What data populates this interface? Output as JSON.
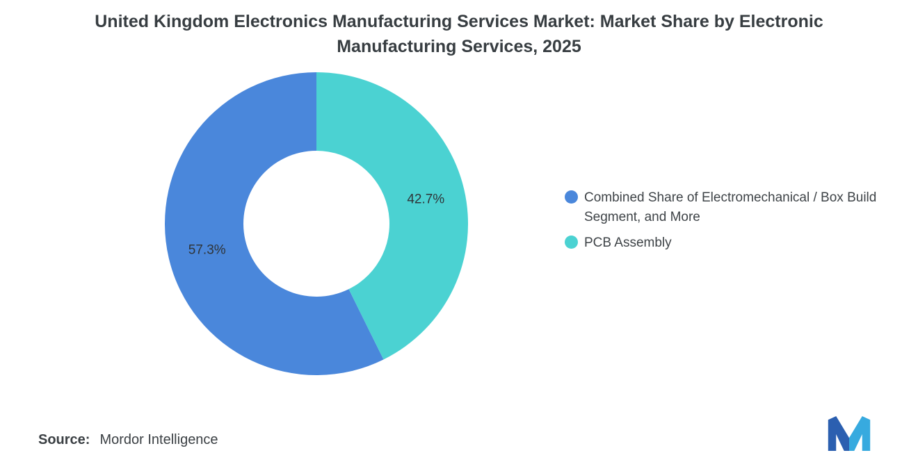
{
  "title": "United Kingdom Electronics Manufacturing Services Market: Market Share by Electronic Manufacturing Services, 2025",
  "chart_data": {
    "type": "pie",
    "subtype": "donut",
    "title": "United Kingdom Electronics Manufacturing Services Market: Market Share by Electronic Manufacturing Services, 2025",
    "labels": [
      "Combined Share of Electromechanical / Box Build Segment, and More",
      "PCB Assembly"
    ],
    "values": [
      57.3,
      42.7
    ],
    "data_labels": [
      "57.3%",
      "42.7%"
    ],
    "colors": [
      "#4a87db",
      "#4bd2d2"
    ],
    "legend_position": "right",
    "start_angle_deg": -90,
    "inner_radius_ratio": 0.48
  },
  "source": {
    "prefix": "Source:",
    "name": "Mordor Intelligence"
  },
  "logo": {
    "name": "mordor-intelligence-logo",
    "color_dark": "#2b5fb0",
    "color_light": "#37aadf"
  }
}
